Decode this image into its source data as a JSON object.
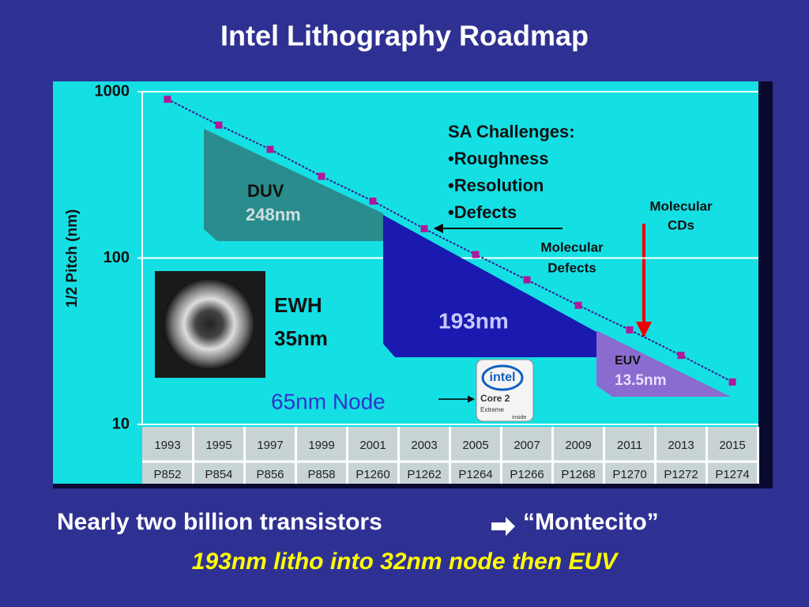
{
  "title": "Intel Lithography Roadmap",
  "chart_data": {
    "type": "line",
    "y_label": "1/2 Pitch (nm)",
    "categories": [
      "1993",
      "1995",
      "1997",
      "1999",
      "2001",
      "2003",
      "2005",
      "2007",
      "2009",
      "2011",
      "2013",
      "2015"
    ],
    "processes": [
      "P852",
      "P854",
      "P856",
      "P858",
      "P1260",
      "P1262",
      "P1264",
      "P1266",
      "P1268",
      "P1270",
      "P1272",
      "P1274"
    ],
    "series": [
      {
        "color": "#b0189c",
        "values": [
          900,
          630,
          450,
          310,
          220,
          150,
          105,
          74,
          52,
          37,
          26,
          18
        ]
      }
    ],
    "ylim": [
      10,
      1000
    ],
    "yticks": [
      10,
      100,
      1000
    ],
    "log_scale": true,
    "grid": true,
    "annotations": {
      "sa_challenges": [
        "SA Challenges:",
        "•Roughness",
        "•Resolution",
        "•Defects"
      ],
      "duv": [
        "DUV",
        "248nm"
      ],
      "arf": "193nm",
      "euv": [
        "EUV",
        "13.5nm"
      ],
      "ewh": [
        "EWH",
        "35nm"
      ],
      "node": "65nm Node",
      "molecular_cds": [
        "Molecular",
        "CDs"
      ],
      "molecular_defects": [
        "Molecular",
        "Defects"
      ],
      "logo": [
        "intel",
        "Core 2",
        "Extreme",
        "inside"
      ]
    }
  },
  "footer": {
    "line1": "Nearly two billion transistors",
    "line1_quote": "“Montecito”",
    "line2": "193nm litho into 32nm node then EUV"
  }
}
